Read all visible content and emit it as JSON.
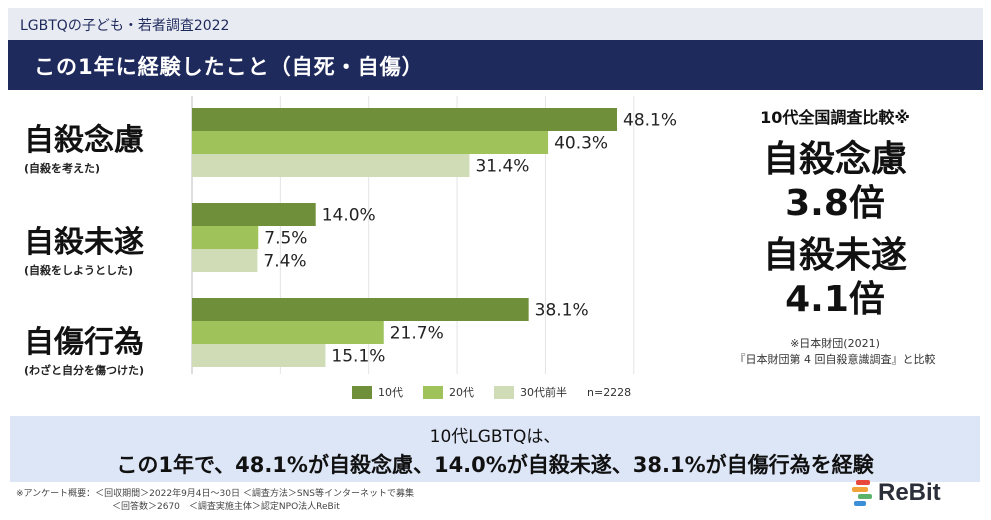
{
  "header": {
    "survey_title": "LGBTQの子ども・若者調査2022",
    "slide_title": "この1年に経験したこと（自死・自傷）"
  },
  "chart_data": {
    "type": "bar",
    "orientation": "horizontal",
    "categories": [
      {
        "main": "自殺念慮",
        "sub": "(自殺を考えた)"
      },
      {
        "main": "自殺未遂",
        "sub": "(自殺をしようとした)"
      },
      {
        "main": "自傷行為",
        "sub": "(わざと自分を傷つけた)"
      }
    ],
    "series": [
      {
        "name": "10代",
        "color": "#6f8f3a",
        "values": [
          48.1,
          14.0,
          38.1
        ],
        "labels": [
          "48.1%",
          "14.0%",
          "38.1%"
        ]
      },
      {
        "name": "20代",
        "color": "#9fc35a",
        "values": [
          40.3,
          7.5,
          21.7
        ],
        "labels": [
          "40.3%",
          "7.5%",
          "21.7%"
        ]
      },
      {
        "name": "30代前半",
        "color": "#cfdcb6",
        "values": [
          31.4,
          7.4,
          15.1
        ],
        "labels": [
          "31.4%",
          "7.4%",
          "15.1%"
        ]
      }
    ],
    "xlim": [
      0,
      60
    ],
    "grid": true,
    "legend_position": "bottom",
    "sample_note": "n=2228"
  },
  "comparison": {
    "heading": "10代全国調査比較※",
    "item1_name": "自殺念慮",
    "item1_value": "3.8倍",
    "item2_name": "自殺未遂",
    "item2_value": "4.1倍",
    "source_line1": "※日本財団(2021)",
    "source_line2": "『日本財団第 4 回自殺意識調査』と比較"
  },
  "summary": {
    "line1": "10代LGBTQは、",
    "line2": "この1年で、48.1%が自殺念慮、14.0%が自殺未遂、38.1%が自傷行為を経験"
  },
  "footnote": {
    "line1": "※アンケート概要：＜回収期間＞2022年9月4日〜30日 ＜調査方法＞SNS等インターネットで募集",
    "line2": "＜回答数＞2670　＜調査実施主体＞認定NPO法人ReBit"
  },
  "logo": {
    "text": "ReBit",
    "colors": [
      "#e8483b",
      "#f2a23a",
      "#5bb36a",
      "#3a8fd6"
    ]
  }
}
